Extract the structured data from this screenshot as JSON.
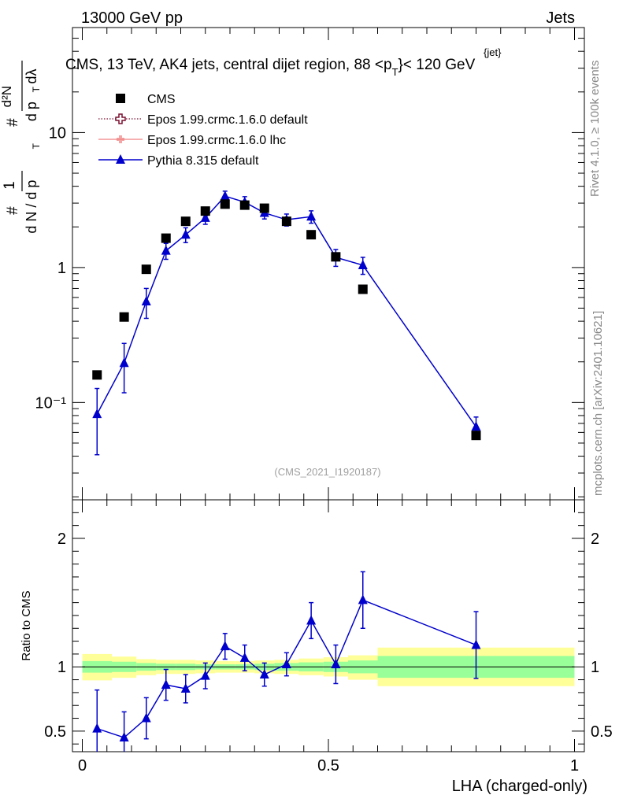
{
  "header": {
    "left": "13000 GeV pp",
    "right": "Jets"
  },
  "side_text": {
    "rivet": "Rivet 4.1.0, ≥ 100k events",
    "mcplots": "mcplots.cern.ch [arXiv:2401.10621]"
  },
  "chart_data": [
    {
      "type": "scatter",
      "panel": "main",
      "title": "CMS, 13 TeV, AK4 jets, central dijet region, 88 <p_T^{jet}< 120 GeV",
      "ylabel": "1/(dN/dpT) d²N/(dpT dλ)",
      "xlabel": "",
      "yscale": "log",
      "xlim": [
        -0.02,
        1.02
      ],
      "ylim": [
        0.019,
        60
      ],
      "y_ticks": [
        {
          "value": 10,
          "label": "10"
        },
        {
          "value": 1,
          "label": "1"
        },
        {
          "value": 0.1,
          "label": "10⁻¹"
        }
      ],
      "watermark": "(CMS_2021_I1920187)",
      "legend_position": "top-left",
      "legend": [
        {
          "name": "CMS",
          "marker": "square",
          "color": "#000000"
        },
        {
          "name": "Epos 1.99.crmc.1.6.0 default",
          "marker": "open-cross",
          "color": "#7a1030",
          "style": "dotted"
        },
        {
          "name": "Epos 1.99.crmc.1.6.0 lhc",
          "marker": "cross",
          "color": "#f08080",
          "style": "solid"
        },
        {
          "name": "Pythia 8.315 default",
          "marker": "triangle",
          "color": "#0000cc",
          "style": "solid"
        }
      ],
      "series": [
        {
          "name": "CMS",
          "x": [
            0.03,
            0.085,
            0.13,
            0.17,
            0.21,
            0.25,
            0.29,
            0.33,
            0.37,
            0.415,
            0.465,
            0.515,
            0.57,
            0.8
          ],
          "y": [
            0.16,
            0.43,
            0.97,
            1.65,
            2.2,
            2.62,
            2.95,
            2.9,
            2.75,
            2.2,
            1.75,
            1.2,
            0.69,
            0.057
          ]
        },
        {
          "name": "Pythia 8.315 default",
          "x": [
            0.03,
            0.085,
            0.13,
            0.17,
            0.21,
            0.25,
            0.29,
            0.33,
            0.37,
            0.415,
            0.465,
            0.515,
            0.57,
            0.8
          ],
          "y": [
            0.082,
            0.196,
            0.56,
            1.33,
            1.75,
            2.33,
            3.38,
            3.05,
            2.54,
            2.26,
            2.38,
            1.19,
            1.04,
            0.066
          ],
          "y_err_low": [
            0.041,
            0.078,
            0.14,
            0.18,
            0.22,
            0.24,
            0.3,
            0.3,
            0.25,
            0.23,
            0.25,
            0.17,
            0.15,
            0.012
          ],
          "y_err_high": [
            0.045,
            0.078,
            0.14,
            0.18,
            0.22,
            0.24,
            0.3,
            0.3,
            0.25,
            0.23,
            0.25,
            0.17,
            0.15,
            0.012
          ]
        }
      ]
    },
    {
      "type": "line",
      "panel": "ratio",
      "ylabel": "Ratio to CMS",
      "xlabel": "LHA (charged-only)",
      "xlim": [
        -0.02,
        1.02
      ],
      "ylim": [
        0.34,
        2.3
      ],
      "x_ticks": [
        {
          "value": 0,
          "label": "0"
        },
        {
          "value": 0.5,
          "label": "0.5"
        },
        {
          "value": 1,
          "label": "1"
        }
      ],
      "y_ticks": [
        {
          "value": 2,
          "label": "2"
        },
        {
          "value": 1,
          "label": "1"
        },
        {
          "value": 0.5,
          "label": "0.5"
        }
      ],
      "bands": [
        {
          "x0": 0.0,
          "x1": 0.06,
          "inner": [
            0.955,
            1.045
          ],
          "outer": [
            0.895,
            1.1
          ]
        },
        {
          "x0": 0.06,
          "x1": 0.11,
          "inner": [
            0.96,
            1.04
          ],
          "outer": [
            0.915,
            1.08
          ]
        },
        {
          "x0": 0.11,
          "x1": 0.15,
          "inner": [
            0.97,
            1.03
          ],
          "outer": [
            0.935,
            1.06
          ]
        },
        {
          "x0": 0.15,
          "x1": 0.19,
          "inner": [
            0.975,
            1.025
          ],
          "outer": [
            0.945,
            1.055
          ]
        },
        {
          "x0": 0.19,
          "x1": 0.23,
          "inner": [
            0.975,
            1.025
          ],
          "outer": [
            0.945,
            1.055
          ]
        },
        {
          "x0": 0.23,
          "x1": 0.27,
          "inner": [
            0.98,
            1.02
          ],
          "outer": [
            0.95,
            1.05
          ]
        },
        {
          "x0": 0.27,
          "x1": 0.31,
          "inner": [
            0.98,
            1.02
          ],
          "outer": [
            0.955,
            1.045
          ]
        },
        {
          "x0": 0.31,
          "x1": 0.35,
          "inner": [
            0.98,
            1.02
          ],
          "outer": [
            0.955,
            1.045
          ]
        },
        {
          "x0": 0.35,
          "x1": 0.39,
          "inner": [
            0.975,
            1.025
          ],
          "outer": [
            0.95,
            1.05
          ]
        },
        {
          "x0": 0.39,
          "x1": 0.44,
          "inner": [
            0.97,
            1.03
          ],
          "outer": [
            0.945,
            1.055
          ]
        },
        {
          "x0": 0.44,
          "x1": 0.49,
          "inner": [
            0.965,
            1.035
          ],
          "outer": [
            0.935,
            1.065
          ]
        },
        {
          "x0": 0.49,
          "x1": 0.54,
          "inner": [
            0.96,
            1.04
          ],
          "outer": [
            0.925,
            1.075
          ]
        },
        {
          "x0": 0.54,
          "x1": 0.6,
          "inner": [
            0.95,
            1.05
          ],
          "outer": [
            0.9,
            1.09
          ]
        },
        {
          "x0": 0.6,
          "x1": 1.0,
          "inner": [
            0.915,
            1.085
          ],
          "outer": [
            0.85,
            1.15
          ]
        }
      ],
      "band_colors": {
        "inner": "#99ff99",
        "outer": "#ffff99"
      },
      "series": [
        {
          "name": "Pythia 8.315 default",
          "color": "#0000cc",
          "x": [
            0.03,
            0.085,
            0.13,
            0.17,
            0.21,
            0.25,
            0.29,
            0.33,
            0.37,
            0.415,
            0.465,
            0.515,
            0.57,
            0.8
          ],
          "y": [
            0.52,
            0.45,
            0.6,
            0.86,
            0.83,
            0.93,
            1.16,
            1.07,
            0.94,
            1.02,
            1.36,
            1.02,
            1.52,
            1.17
          ],
          "y_err_low": [
            0.3,
            0.2,
            0.16,
            0.12,
            0.11,
            0.1,
            0.1,
            0.1,
            0.09,
            0.09,
            0.14,
            0.15,
            0.22,
            0.26
          ],
          "y_err_high": [
            0.3,
            0.2,
            0.16,
            0.12,
            0.11,
            0.1,
            0.1,
            0.1,
            0.09,
            0.09,
            0.14,
            0.15,
            0.22,
            0.26
          ]
        }
      ]
    }
  ]
}
